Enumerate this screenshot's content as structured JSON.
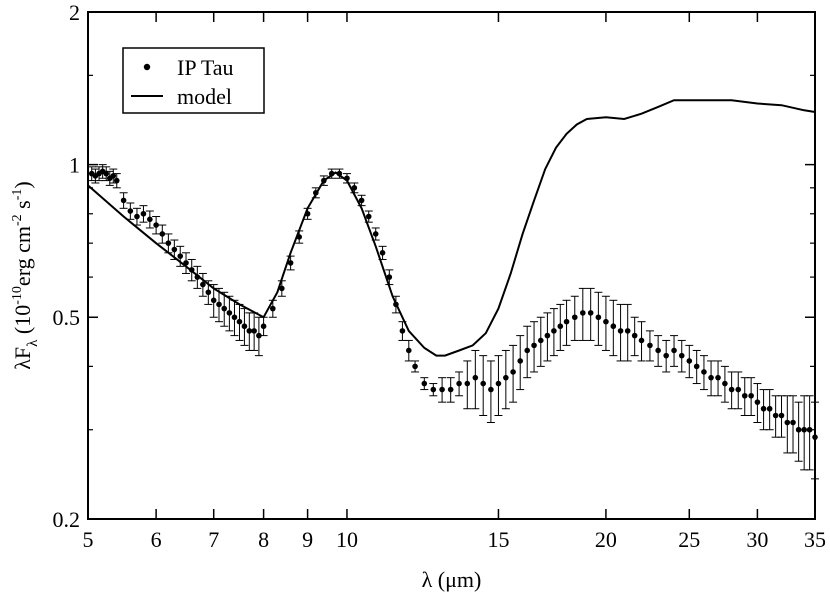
{
  "chart_data": {
    "type": "scatter",
    "xscale": "log",
    "yscale": "log",
    "xlim": [
      5,
      35
    ],
    "ylim": [
      0.2,
      2
    ],
    "xlabel": {
      "main": "λ (",
      "unit": "μm",
      "end": ")"
    },
    "ylabel": {
      "lambda": "λF",
      "sub": "λ",
      "open": " (10",
      "exp1": "-10",
      "unit1": "erg cm",
      "exp2": "-2",
      "unit2": " s",
      "exp3": "-1",
      "close": ")"
    },
    "xticks": [
      5,
      6,
      7,
      8,
      9,
      10,
      15,
      20,
      25,
      30,
      35
    ],
    "xtick_labels": [
      "5",
      "6",
      "7",
      "8",
      "9",
      "10",
      "15",
      "20",
      "25",
      "30",
      "35"
    ],
    "yticks": [
      0.2,
      0.5,
      1,
      2
    ],
    "ytick_labels": [
      "0.2",
      "0.5",
      "1",
      "2"
    ],
    "legend": [
      {
        "label": "IP Tau",
        "marker": "dot"
      },
      {
        "label": "model",
        "marker": "line"
      }
    ],
    "series": [
      {
        "name": "model",
        "kind": "line",
        "x": [
          5.0,
          5.5,
          6.0,
          6.5,
          7.0,
          7.5,
          8.0,
          8.3,
          8.6,
          9.0,
          9.4,
          9.7,
          10.0,
          10.4,
          10.8,
          11.3,
          11.8,
          12.3,
          12.7,
          13.0,
          13.5,
          14.0,
          14.5,
          15.0,
          15.5,
          16.0,
          16.5,
          17.0,
          17.5,
          18.0,
          18.5,
          19.0,
          20.0,
          21.0,
          22.0,
          23.0,
          24.0,
          26.0,
          28.0,
          30.0,
          32.0,
          34.0,
          35.0
        ],
        "y": [
          0.91,
          0.79,
          0.7,
          0.63,
          0.57,
          0.53,
          0.5,
          0.56,
          0.67,
          0.82,
          0.93,
          0.965,
          0.93,
          0.82,
          0.69,
          0.55,
          0.47,
          0.435,
          0.42,
          0.42,
          0.43,
          0.44,
          0.465,
          0.52,
          0.61,
          0.73,
          0.85,
          0.98,
          1.08,
          1.15,
          1.2,
          1.23,
          1.24,
          1.23,
          1.26,
          1.3,
          1.34,
          1.34,
          1.34,
          1.32,
          1.31,
          1.28,
          1.27
        ]
      },
      {
        "name": "IP Tau",
        "kind": "points",
        "x": [
          5.05,
          5.1,
          5.15,
          5.2,
          5.25,
          5.3,
          5.35,
          5.4,
          5.5,
          5.6,
          5.7,
          5.8,
          5.9,
          6.0,
          6.1,
          6.2,
          6.3,
          6.4,
          6.5,
          6.6,
          6.7,
          6.8,
          6.9,
          7.0,
          7.1,
          7.2,
          7.3,
          7.4,
          7.5,
          7.6,
          7.7,
          7.8,
          7.9,
          8.0,
          8.2,
          8.4,
          8.6,
          8.8,
          9.0,
          9.2,
          9.4,
          9.6,
          9.8,
          10.0,
          10.2,
          10.4,
          10.6,
          10.8,
          11.0,
          11.2,
          11.4,
          11.6,
          11.8,
          12.0,
          12.3,
          12.6,
          12.9,
          13.2,
          13.5,
          13.8,
          14.1,
          14.4,
          14.7,
          15.0,
          15.3,
          15.6,
          15.9,
          16.2,
          16.5,
          16.8,
          17.1,
          17.4,
          17.7,
          18.0,
          18.4,
          18.8,
          19.2,
          19.6,
          20.0,
          20.4,
          20.8,
          21.2,
          21.6,
          22.0,
          22.5,
          23.0,
          23.5,
          24.0,
          24.5,
          25.0,
          25.5,
          26.0,
          26.5,
          27.0,
          27.5,
          28.0,
          28.5,
          29.0,
          29.5,
          30.0,
          30.5,
          31.0,
          31.5,
          32.0,
          32.5,
          33.0,
          33.5,
          34.0,
          34.5,
          35.0
        ],
        "y": [
          0.96,
          0.95,
          0.96,
          0.97,
          0.96,
          0.94,
          0.95,
          0.93,
          0.85,
          0.81,
          0.79,
          0.8,
          0.78,
          0.76,
          0.73,
          0.7,
          0.68,
          0.66,
          0.64,
          0.62,
          0.6,
          0.58,
          0.56,
          0.54,
          0.53,
          0.52,
          0.51,
          0.5,
          0.49,
          0.48,
          0.47,
          0.47,
          0.46,
          0.48,
          0.52,
          0.57,
          0.64,
          0.72,
          0.8,
          0.88,
          0.93,
          0.96,
          0.96,
          0.94,
          0.9,
          0.85,
          0.79,
          0.73,
          0.67,
          0.6,
          0.53,
          0.47,
          0.43,
          0.4,
          0.37,
          0.36,
          0.36,
          0.36,
          0.37,
          0.37,
          0.38,
          0.37,
          0.36,
          0.37,
          0.38,
          0.39,
          0.41,
          0.43,
          0.44,
          0.45,
          0.46,
          0.47,
          0.48,
          0.49,
          0.5,
          0.51,
          0.51,
          0.5,
          0.49,
          0.48,
          0.47,
          0.47,
          0.46,
          0.45,
          0.44,
          0.43,
          0.42,
          0.43,
          0.42,
          0.41,
          0.4,
          0.39,
          0.38,
          0.38,
          0.37,
          0.36,
          0.36,
          0.35,
          0.35,
          0.34,
          0.33,
          0.33,
          0.32,
          0.32,
          0.31,
          0.31,
          0.3,
          0.3,
          0.3,
          0.29
        ],
        "yerr": [
          0.03,
          0.03,
          0.03,
          0.03,
          0.03,
          0.03,
          0.03,
          0.03,
          0.03,
          0.03,
          0.03,
          0.03,
          0.03,
          0.03,
          0.03,
          0.03,
          0.03,
          0.03,
          0.03,
          0.03,
          0.03,
          0.03,
          0.03,
          0.04,
          0.04,
          0.04,
          0.04,
          0.04,
          0.04,
          0.04,
          0.04,
          0.04,
          0.04,
          0.02,
          0.02,
          0.02,
          0.02,
          0.02,
          0.02,
          0.02,
          0.02,
          0.02,
          0.02,
          0.02,
          0.02,
          0.02,
          0.02,
          0.02,
          0.02,
          0.02,
          0.02,
          0.02,
          0.02,
          0.01,
          0.01,
          0.01,
          0.02,
          0.02,
          0.02,
          0.04,
          0.05,
          0.05,
          0.05,
          0.05,
          0.05,
          0.05,
          0.05,
          0.05,
          0.05,
          0.05,
          0.05,
          0.05,
          0.05,
          0.05,
          0.05,
          0.06,
          0.06,
          0.06,
          0.06,
          0.06,
          0.06,
          0.06,
          0.04,
          0.04,
          0.03,
          0.03,
          0.03,
          0.03,
          0.03,
          0.03,
          0.03,
          0.03,
          0.03,
          0.03,
          0.03,
          0.03,
          0.03,
          0.03,
          0.03,
          0.03,
          0.03,
          0.03,
          0.03,
          0.03,
          0.04,
          0.04,
          0.04,
          0.05,
          0.05,
          0.05
        ]
      }
    ]
  }
}
